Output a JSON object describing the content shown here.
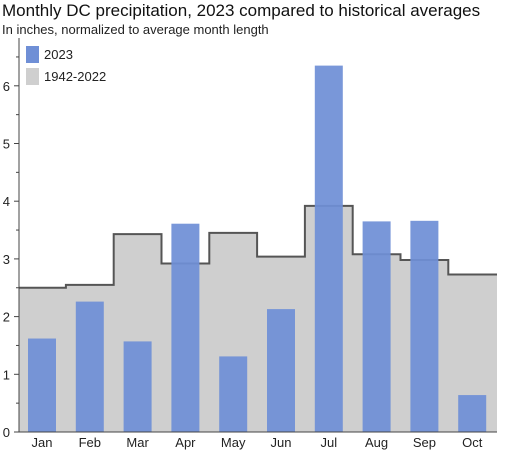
{
  "chart_data": {
    "type": "bar",
    "title": "Monthly DC precipitation, 2023 compared to historical averages",
    "subtitle": "In inches, normalized to average month length",
    "xlabel": "",
    "ylabel": "",
    "categories": [
      "Jan",
      "Feb",
      "Mar",
      "Apr",
      "May",
      "Jun",
      "Jul",
      "Aug",
      "Sep",
      "Oct"
    ],
    "ylim": [
      0,
      6.5
    ],
    "yticks": [
      0,
      1,
      2,
      3,
      4,
      5,
      6
    ],
    "legend_position": "top-left",
    "grid": false,
    "series": [
      {
        "name": "2023",
        "type": "bar",
        "color": "#6f8fd6",
        "values": [
          1.62,
          2.26,
          1.57,
          3.61,
          1.31,
          2.13,
          6.35,
          3.65,
          3.66,
          0.64
        ]
      },
      {
        "name": "1942-2022",
        "type": "step-area",
        "color": "#cfcfcf",
        "line_color": "#555555",
        "values": [
          2.5,
          2.55,
          3.43,
          2.92,
          3.45,
          3.04,
          3.92,
          3.08,
          2.98,
          2.73
        ]
      }
    ]
  }
}
